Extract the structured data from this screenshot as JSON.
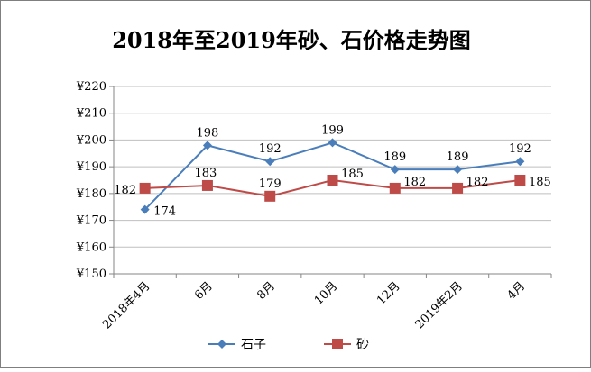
{
  "chart_data": {
    "type": "line",
    "title": "2018年至2019年砂、石价格走势图",
    "categories": [
      "2018年4月",
      "6月",
      "8月",
      "10月",
      "12月",
      "2019年2月",
      "4月"
    ],
    "series": [
      {
        "name": "石子",
        "values": [
          174,
          198,
          192,
          199,
          189,
          189,
          192
        ],
        "color": "#4a7ebb",
        "marker": "diamond"
      },
      {
        "name": "砂",
        "values": [
          182,
          183,
          179,
          185,
          182,
          182,
          185
        ],
        "color": "#be4b48",
        "marker": "square"
      }
    ],
    "ylim": [
      150,
      220
    ],
    "ytick_step": 10,
    "ytick_labels": [
      "¥150",
      "¥160",
      "¥170",
      "¥180",
      "¥190",
      "¥200",
      "¥210",
      "¥220"
    ],
    "grid": true,
    "legend_position": "bottom"
  }
}
